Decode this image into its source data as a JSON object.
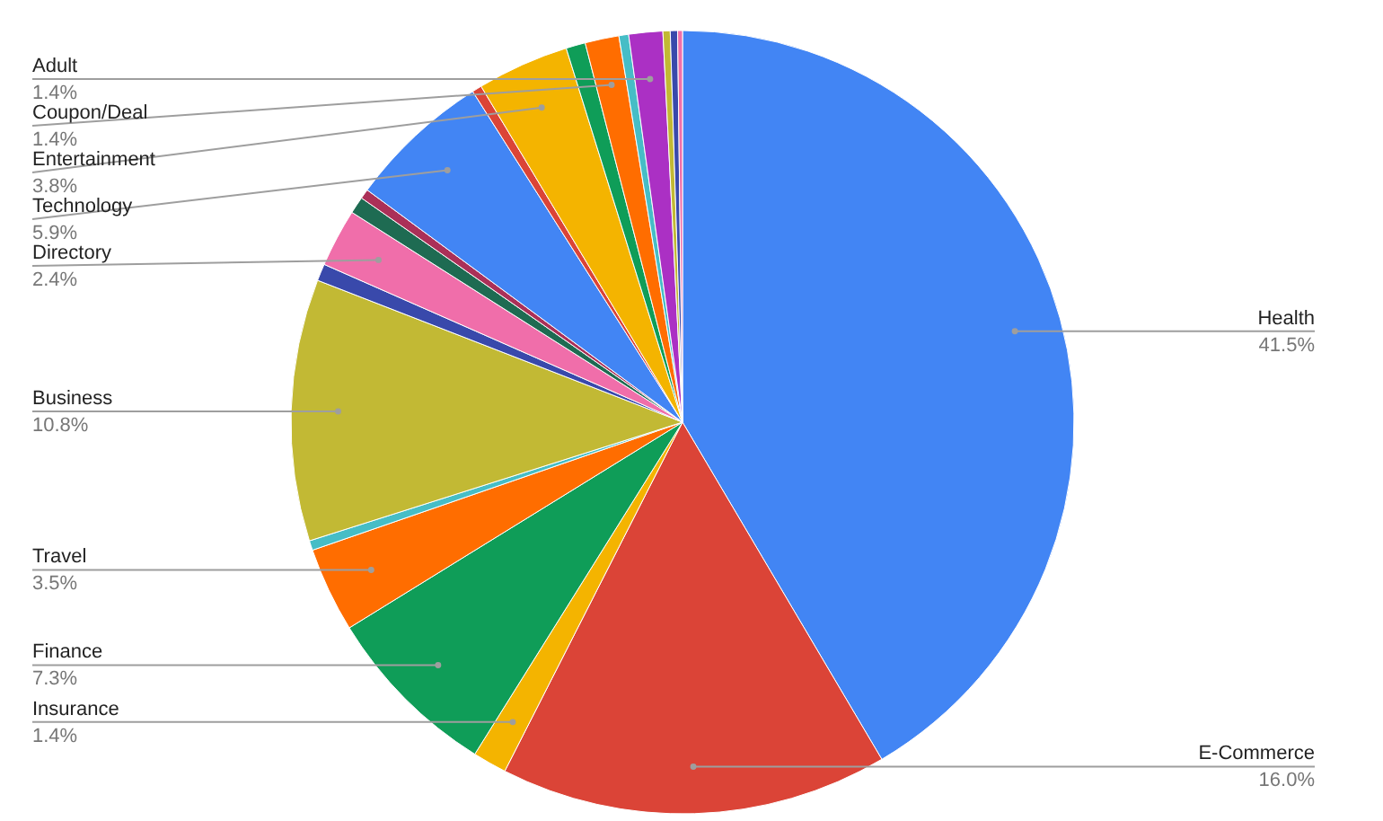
{
  "chart_data": {
    "type": "pie",
    "categories": [
      "Health",
      "E-Commerce",
      "Insurance",
      "Finance",
      "Travel",
      null,
      "Business",
      null,
      "Directory",
      null,
      null,
      "Technology",
      null,
      "Entertainment",
      null,
      "Coupon/Deal",
      null,
      "Adult",
      null,
      null,
      null
    ],
    "values": [
      41.5,
      16.0,
      1.4,
      7.3,
      3.5,
      0.4,
      10.8,
      0.7,
      2.4,
      0.7,
      0.4,
      5.9,
      0.4,
      3.8,
      0.8,
      1.4,
      0.4,
      1.4,
      0.3,
      0.3,
      0.2
    ],
    "value_labels": [
      "41.5%",
      "16.0%",
      "1.4%",
      "7.3%",
      "3.5%",
      null,
      "10.8%",
      null,
      "2.4%",
      null,
      null,
      "5.9%",
      null,
      "3.8%",
      null,
      "1.4%",
      null,
      "1.4%",
      null,
      null,
      null
    ],
    "colors": [
      "#4285f4",
      "#db4437",
      "#f4b400",
      "#0f9d58",
      "#ff6d00",
      "#46bdc6",
      "#c2b934",
      "#3949ab",
      "#f06eaa",
      "#1e6b52",
      "#ab3058",
      "#4285f4",
      "#db4437",
      "#f4b400",
      "#0f9d58",
      "#ff6d00",
      "#46bdc6",
      "#ab30c4",
      "#c2b934",
      "#3949ab",
      "#f06eaa"
    ]
  }
}
